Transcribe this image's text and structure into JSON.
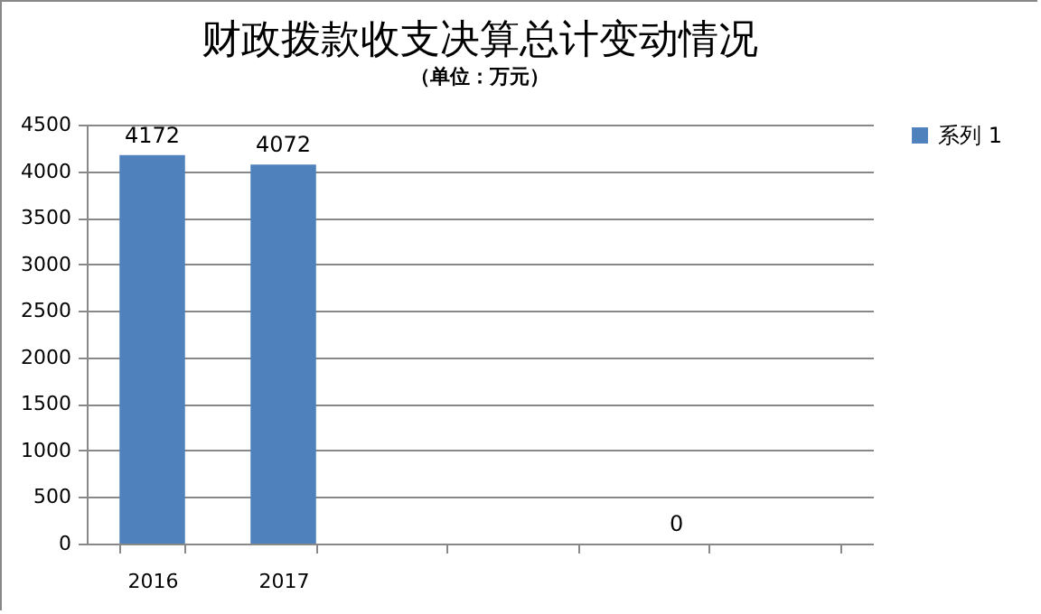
{
  "chart_data": {
    "type": "bar",
    "title": "财政拨款收支决算总计变动情况",
    "subtitle": "（单位：万元）",
    "categories": [
      "2016",
      "2017",
      null,
      null,
      null,
      null
    ],
    "series": [
      {
        "name": "系列 1",
        "color": "#4f81bd",
        "values": [
          4172,
          4072,
          null,
          null,
          0,
          null
        ],
        "value_labels": [
          "4172",
          "4072",
          null,
          null,
          "0",
          null
        ]
      }
    ],
    "ylim": [
      0,
      4500
    ],
    "yticks": [
      0,
      500,
      1000,
      1500,
      2000,
      2500,
      3000,
      3500,
      4000,
      4500
    ],
    "grid": "y",
    "legend": "right"
  }
}
